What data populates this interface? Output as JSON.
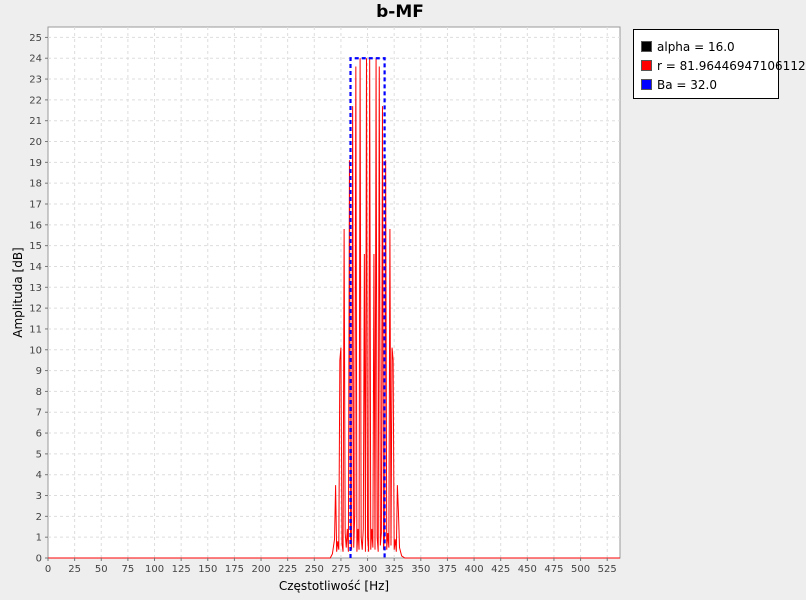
{
  "chart_data": {
    "type": "line",
    "title": "b-MF",
    "xlabel": "Częstotliwość [Hz]",
    "ylabel": "Amplituda [dB]",
    "xlim": [
      0,
      537
    ],
    "ylim": [
      0,
      25.5
    ],
    "xticks": [
      0,
      25,
      50,
      75,
      100,
      125,
      150,
      175,
      200,
      225,
      250,
      275,
      300,
      325,
      350,
      375,
      400,
      425,
      450,
      475,
      500,
      525
    ],
    "yticks": [
      0,
      1,
      2,
      3,
      4,
      5,
      6,
      7,
      8,
      9,
      10,
      11,
      12,
      13,
      14,
      15,
      16,
      17,
      18,
      19,
      20,
      21,
      22,
      23,
      24,
      25
    ],
    "grid": true,
    "legend_position": "top-right outside",
    "series": [
      {
        "name": "alpha = 16.0",
        "color": "#000000",
        "x": [],
        "y": []
      },
      {
        "name": "r = 81.96446947106112",
        "color": "#ff0000",
        "x": [
          0,
          265,
          267,
          269,
          270,
          271,
          272,
          273,
          274,
          275,
          276,
          277,
          278,
          279,
          280,
          281,
          282,
          283,
          284,
          285,
          286,
          287,
          288,
          289,
          290,
          291,
          292,
          293,
          294,
          295,
          296,
          297,
          298,
          299,
          300,
          301,
          302,
          303,
          304,
          305,
          306,
          307,
          308,
          309,
          310,
          311,
          312,
          313,
          314,
          315,
          316,
          317,
          318,
          319,
          320,
          321,
          322,
          323,
          324,
          325,
          326,
          327,
          328,
          329,
          330,
          331,
          332,
          335,
          537
        ],
        "y": [
          0,
          0,
          0.2,
          0.9,
          3.5,
          0.3,
          0.8,
          0.4,
          9.5,
          10.1,
          0.7,
          0.3,
          15.8,
          1.2,
          0.5,
          1.4,
          0.3,
          19.1,
          1.0,
          0.4,
          21.7,
          0.5,
          2.1,
          23.6,
          0.3,
          1.4,
          0.4,
          24.0,
          1.0,
          0.4,
          1.4,
          14.6,
          0.3,
          24.0,
          1.0,
          0.3,
          24.0,
          0.4,
          1.4,
          0.5,
          14.6,
          0.4,
          24.0,
          1.0,
          0.3,
          23.6,
          0.6,
          1.2,
          21.7,
          0.4,
          1.1,
          19.1,
          0.4,
          1.2,
          0.5,
          15.8,
          0.6,
          10.1,
          9.5,
          0.4,
          0.9,
          0.3,
          3.5,
          2.2,
          0.5,
          0.3,
          0.1,
          0,
          0
        ]
      },
      {
        "name": "Ba = 32.0",
        "color": "#0000ff",
        "style": "dashed",
        "x": [
          284,
          284,
          316,
          316
        ],
        "y": [
          0,
          24,
          24,
          0
        ]
      }
    ]
  }
}
